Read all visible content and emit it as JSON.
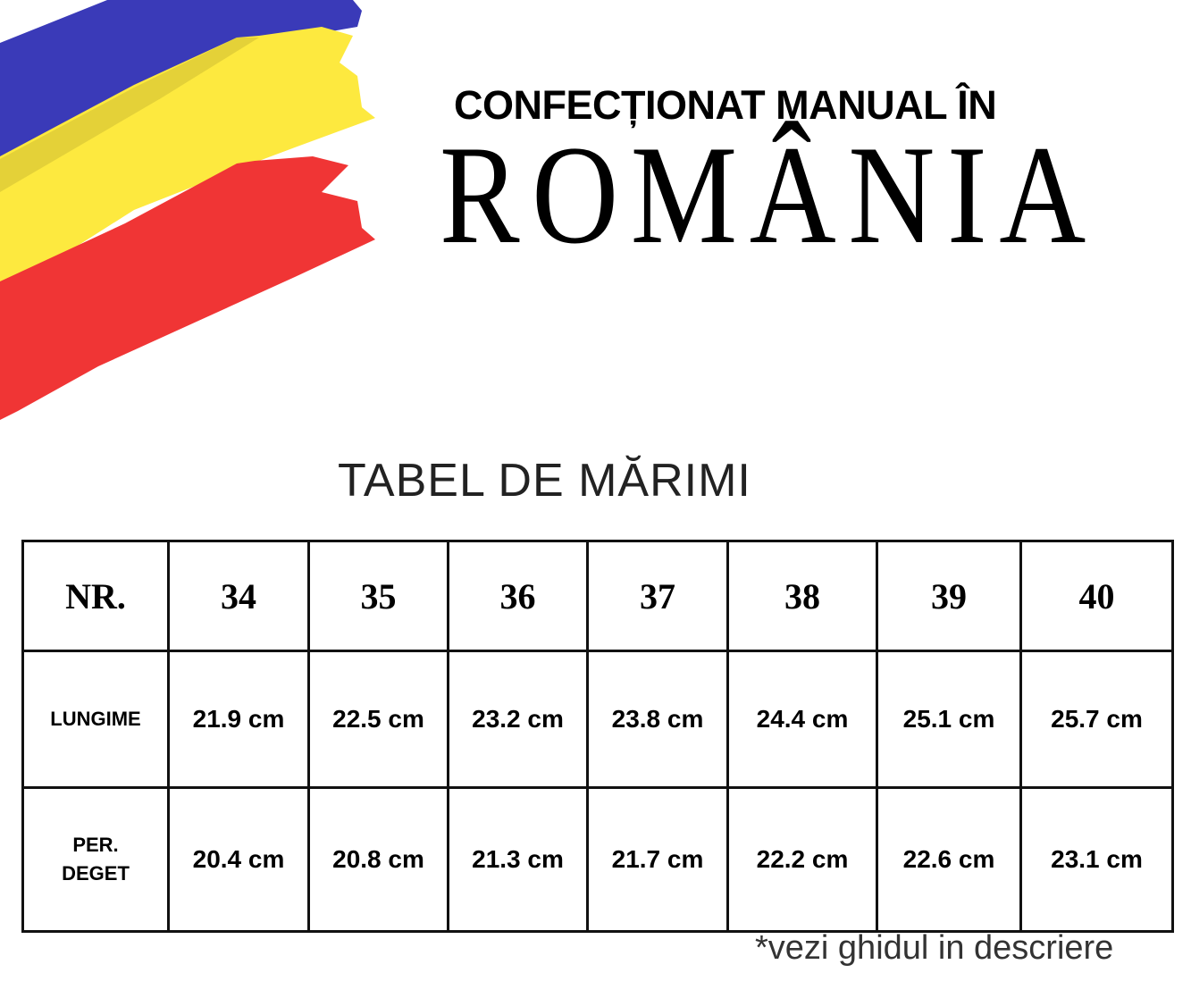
{
  "flag": {
    "colors": {
      "blue": "#3a3ab8",
      "yellow": "#fde93f",
      "red": "#f03535"
    }
  },
  "heading": {
    "line1": "CONFECȚIONAT MANUAL ÎN",
    "line2": "ROMÂNIA"
  },
  "size_table": {
    "title": "TABEL DE MĂRIMI",
    "header_label": "NR.",
    "sizes": [
      "34",
      "35",
      "36",
      "37",
      "38",
      "39",
      "40"
    ],
    "rows": [
      {
        "label": "LUNGIME",
        "values": [
          "21.9 cm",
          "22.5 cm",
          "23.2 cm",
          "23.8 cm",
          "24.4 cm",
          "25.1 cm",
          "25.7 cm"
        ]
      },
      {
        "label_line1": "PER.",
        "label_line2": "DEGET",
        "values": [
          "20.4 cm",
          "20.8 cm",
          "21.3 cm",
          "21.7 cm",
          "22.2 cm",
          "22.6 cm",
          "23.1 cm"
        ]
      }
    ]
  },
  "footnote": "*vezi ghidul in descriere"
}
